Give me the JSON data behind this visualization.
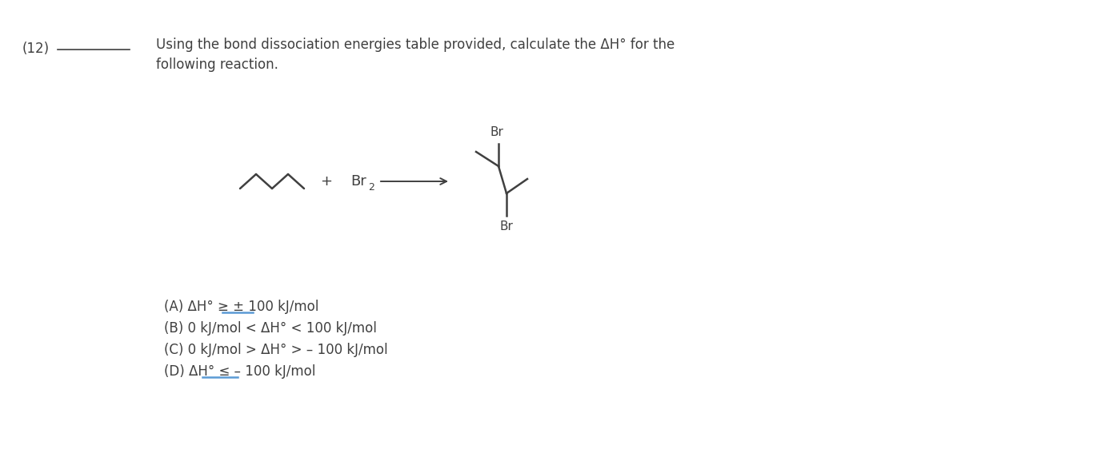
{
  "bg_color": "#ffffff",
  "question_number": "(12)",
  "question_text_line1": "Using the bond dissociation energies table provided, calculate the ΔH° for the",
  "question_text_line2": "following reaction.",
  "answer_choices": [
    "(A) ΔH° ≥ ± 100 kJ/mol",
    "(B) 0 kJ/mol < ΔH° < 100 kJ/mol",
    "(C) 0 kJ/mol > ΔH° > – 100 kJ/mol",
    "(D) ΔH° ≤ – 100 kJ/mol"
  ],
  "font_size_question": 12.0,
  "font_size_answers": 12.0,
  "text_color": "#404040",
  "col": "#404040",
  "highlight_color": "#5b9bd5"
}
